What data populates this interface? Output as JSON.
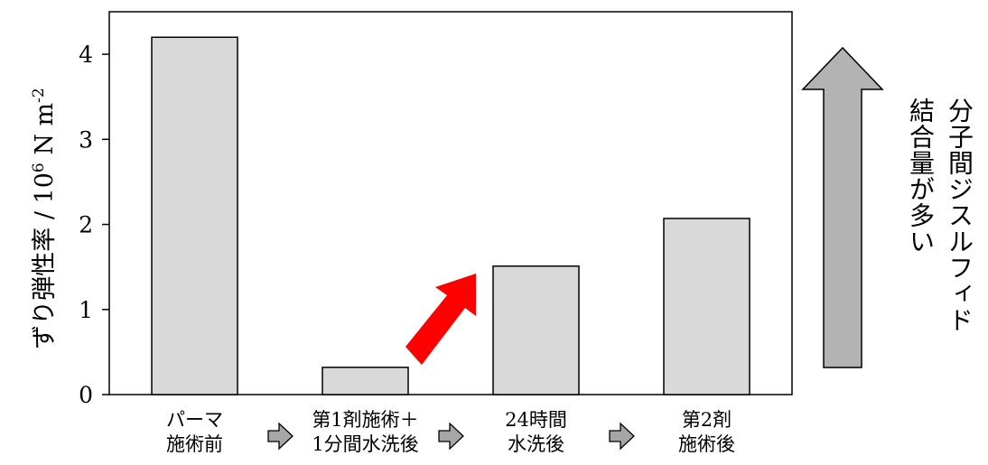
{
  "chart_data": {
    "type": "bar",
    "categories": [
      "パーマ\n施術前",
      "第1剤施術＋\n1分間水洗後",
      "24時間\n水洗後",
      "第2剤\n施術後"
    ],
    "values": [
      4.2,
      0.32,
      1.51,
      2.07
    ],
    "ylabel_main": "ずり弾性率 / 10",
    "ylabel_exp": "6",
    "ylabel_unit": " N m",
    "ylabel_unit_exp": "-2",
    "ylim": [
      0,
      4.5
    ],
    "yticks": [
      0,
      1,
      2,
      3,
      4
    ],
    "grid": false,
    "bar_color": "#d9d9d9",
    "highlight_arrow_color": "#ff0000",
    "step_arrow_color": "#a6a6a6",
    "annotation": {
      "line1": "分子間ジスルフィド",
      "line2": "結合量が多い",
      "arrow_color": "#b3b3b3"
    }
  }
}
